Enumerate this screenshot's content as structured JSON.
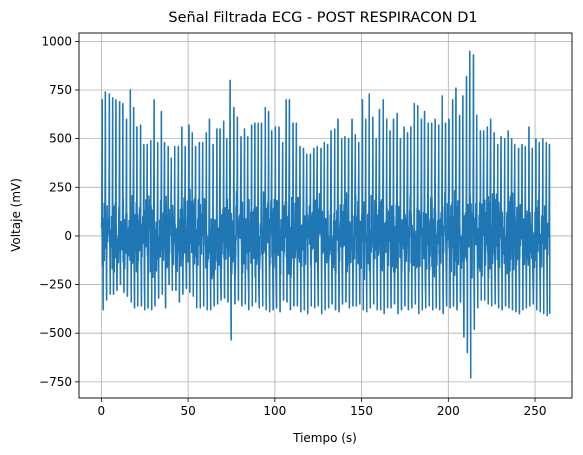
{
  "chart_data": {
    "type": "line",
    "title": "Señal Filtrada ECG - POST RESPIRACON D1",
    "xlabel": "Tiempo (s)",
    "ylabel": "Voltaje (mV)",
    "xlim": [
      -12.9,
      271.3
    ],
    "ylim": [
      -833,
      1043
    ],
    "grid": true,
    "x_ticks": [
      0,
      50,
      100,
      150,
      200,
      250
    ],
    "y_ticks": [
      -750,
      -500,
      -250,
      0,
      250,
      500,
      750,
      1000
    ],
    "x_tick_labels": [
      "0",
      "50",
      "100",
      "150",
      "200",
      "250"
    ],
    "y_tick_labels": [
      "−750",
      "−500",
      "−250",
      "0",
      "250",
      "500",
      "750",
      "1000"
    ],
    "series": [
      {
        "color": "#1f77b4",
        "x_range": [
          0,
          258.5
        ],
        "r_peaks": [
          [
            0.5,
            700
          ],
          [
            2.3,
            740
          ],
          [
            4.6,
            730
          ],
          [
            6.5,
            710
          ],
          [
            8.4,
            700
          ],
          [
            10.5,
            690
          ],
          [
            12.4,
            680
          ],
          [
            14.5,
            600
          ],
          [
            16.7,
            750
          ],
          [
            18.6,
            660
          ],
          [
            20.5,
            560
          ],
          [
            22.6,
            570
          ],
          [
            24.5,
            470
          ],
          [
            26.4,
            470
          ],
          [
            28.5,
            490
          ],
          [
            30.4,
            700
          ],
          [
            32.5,
            480
          ],
          [
            34.6,
            640
          ],
          [
            36.4,
            480
          ],
          [
            38.5,
            460
          ],
          [
            40.3,
            400
          ],
          [
            42.3,
            460
          ],
          [
            44.4,
            460
          ],
          [
            46.4,
            560
          ],
          [
            48.3,
            460
          ],
          [
            50.5,
            570
          ],
          [
            52.4,
            530
          ],
          [
            54.3,
            460
          ],
          [
            56.5,
            480
          ],
          [
            58.4,
            480
          ],
          [
            60.5,
            530
          ],
          [
            62.3,
            600
          ],
          [
            64.4,
            470
          ],
          [
            66.6,
            550
          ],
          [
            68.4,
            550
          ],
          [
            70.5,
            590
          ],
          [
            72.3,
            500
          ],
          [
            74.2,
            800
          ],
          [
            76.4,
            660
          ],
          [
            78.4,
            610
          ],
          [
            80.5,
            510
          ],
          [
            82.5,
            550
          ],
          [
            84.4,
            510
          ],
          [
            86.6,
            570
          ],
          [
            88.5,
            580
          ],
          [
            90.4,
            580
          ],
          [
            92.3,
            580
          ],
          [
            94.5,
            660
          ],
          [
            96.4,
            640
          ],
          [
            98.2,
            540
          ],
          [
            100.3,
            560
          ],
          [
            102.4,
            560
          ],
          [
            104.5,
            480
          ],
          [
            106.5,
            700
          ],
          [
            108.4,
            700
          ],
          [
            110.5,
            580
          ],
          [
            112.4,
            580
          ],
          [
            114.5,
            460
          ],
          [
            116.5,
            450
          ],
          [
            118.4,
            420
          ],
          [
            120.5,
            420
          ],
          [
            122.5,
            450
          ],
          [
            124.4,
            460
          ],
          [
            126.6,
            450
          ],
          [
            128.5,
            480
          ],
          [
            130.4,
            470
          ],
          [
            132.4,
            540
          ],
          [
            134.5,
            550
          ],
          [
            136.4,
            600
          ],
          [
            138.6,
            500
          ],
          [
            140.4,
            510
          ],
          [
            142.5,
            500
          ],
          [
            144.5,
            600
          ],
          [
            146.4,
            520
          ],
          [
            148.4,
            480
          ],
          [
            150.5,
            700
          ],
          [
            152.4,
            600
          ],
          [
            154.4,
            730
          ],
          [
            156.5,
            610
          ],
          [
            158.4,
            500
          ],
          [
            160.3,
            650
          ],
          [
            162.5,
            700
          ],
          [
            164.5,
            600
          ],
          [
            166.4,
            540
          ],
          [
            168.4,
            600
          ],
          [
            170.5,
            630
          ],
          [
            172.4,
            500
          ],
          [
            174.5,
            560
          ],
          [
            176.5,
            530
          ],
          [
            178.4,
            560
          ],
          [
            180.4,
            680
          ],
          [
            182.4,
            670
          ],
          [
            184.5,
            600
          ],
          [
            186.3,
            640
          ],
          [
            188.4,
            580
          ],
          [
            190.4,
            580
          ],
          [
            192.4,
            600
          ],
          [
            194.5,
            570
          ],
          [
            196.5,
            720
          ],
          [
            198.4,
            580
          ],
          [
            200.4,
            600
          ],
          [
            202.5,
            700
          ],
          [
            204.4,
            760
          ],
          [
            206.5,
            620
          ],
          [
            208.4,
            720
          ],
          [
            210.5,
            820
          ],
          [
            212.4,
            950
          ],
          [
            214.5,
            930
          ],
          [
            216.4,
            620
          ],
          [
            218.5,
            540
          ],
          [
            220.4,
            540
          ],
          [
            222.5,
            560
          ],
          [
            224.4,
            600
          ],
          [
            226.4,
            530
          ],
          [
            228.5,
            470
          ],
          [
            230.4,
            510
          ],
          [
            232.5,
            500
          ],
          [
            234.5,
            540
          ],
          [
            236.5,
            500
          ],
          [
            238.3,
            470
          ],
          [
            240.5,
            450
          ],
          [
            242.5,
            470
          ],
          [
            244.4,
            460
          ],
          [
            246.5,
            560
          ],
          [
            248.4,
            450
          ],
          [
            250.5,
            500
          ],
          [
            252.4,
            480
          ],
          [
            254.5,
            500
          ],
          [
            256.5,
            480
          ],
          [
            258.3,
            470
          ]
        ],
        "s_troughs": [
          [
            1.0,
            -380
          ],
          [
            3.0,
            -330
          ],
          [
            5.1,
            -300
          ],
          [
            7.0,
            -300
          ],
          [
            9.0,
            -280
          ],
          [
            11.0,
            -250
          ],
          [
            13.0,
            -290
          ],
          [
            15.0,
            -310
          ],
          [
            17.2,
            -340
          ],
          [
            19.1,
            -370
          ],
          [
            21.0,
            -360
          ],
          [
            23.1,
            -360
          ],
          [
            25.0,
            -380
          ],
          [
            26.9,
            -370
          ],
          [
            29.0,
            -380
          ],
          [
            30.9,
            -360
          ],
          [
            33.0,
            -320
          ],
          [
            35.1,
            -300
          ],
          [
            37.0,
            -370
          ],
          [
            39.0,
            -250
          ],
          [
            40.9,
            -280
          ],
          [
            43.0,
            -280
          ],
          [
            45.0,
            -340
          ],
          [
            47.0,
            -300
          ],
          [
            49.0,
            -270
          ],
          [
            51.0,
            -290
          ],
          [
            53.0,
            -310
          ],
          [
            55.0,
            -370
          ],
          [
            57.0,
            -370
          ],
          [
            59.0,
            -360
          ],
          [
            61.0,
            -380
          ],
          [
            63.0,
            -380
          ],
          [
            65.0,
            -360
          ],
          [
            67.0,
            -350
          ],
          [
            69.0,
            -330
          ],
          [
            71.0,
            -320
          ],
          [
            73.0,
            -340
          ],
          [
            74.8,
            -535
          ],
          [
            77.0,
            -350
          ],
          [
            79.0,
            -330
          ],
          [
            81.0,
            -360
          ],
          [
            83.0,
            -350
          ],
          [
            85.0,
            -380
          ],
          [
            87.0,
            -360
          ],
          [
            89.0,
            -340
          ],
          [
            91.0,
            -370
          ],
          [
            93.0,
            -360
          ],
          [
            95.0,
            -380
          ],
          [
            97.0,
            -390
          ],
          [
            99.0,
            -380
          ],
          [
            101.0,
            -370
          ],
          [
            103.0,
            -390
          ],
          [
            105.0,
            -330
          ],
          [
            107.0,
            -340
          ],
          [
            109.0,
            -380
          ],
          [
            111.0,
            -360
          ],
          [
            113.0,
            -360
          ],
          [
            115.0,
            -390
          ],
          [
            117.0,
            -380
          ],
          [
            119.0,
            -400
          ],
          [
            121.0,
            -360
          ],
          [
            123.0,
            -370
          ],
          [
            125.0,
            -360
          ],
          [
            127.0,
            -400
          ],
          [
            129.0,
            -380
          ],
          [
            131.0,
            -370
          ],
          [
            133.0,
            -350
          ],
          [
            135.0,
            -380
          ],
          [
            137.0,
            -390
          ],
          [
            139.0,
            -350
          ],
          [
            141.0,
            -340
          ],
          [
            143.0,
            -370
          ],
          [
            145.0,
            -360
          ],
          [
            147.0,
            -360
          ],
          [
            149.0,
            -350
          ],
          [
            151.0,
            -380
          ],
          [
            153.0,
            -390
          ],
          [
            155.0,
            -370
          ],
          [
            157.0,
            -350
          ],
          [
            159.0,
            -380
          ],
          [
            161.0,
            -380
          ],
          [
            163.0,
            -400
          ],
          [
            165.0,
            -370
          ],
          [
            167.0,
            -370
          ],
          [
            169.0,
            -350
          ],
          [
            171.0,
            -400
          ],
          [
            173.0,
            -380
          ],
          [
            175.0,
            -360
          ],
          [
            177.0,
            -380
          ],
          [
            179.0,
            -370
          ],
          [
            181.0,
            -350
          ],
          [
            183.0,
            -400
          ],
          [
            185.0,
            -380
          ],
          [
            187.0,
            -370
          ],
          [
            189.0,
            -360
          ],
          [
            191.0,
            -380
          ],
          [
            193.0,
            -370
          ],
          [
            195.0,
            -380
          ],
          [
            197.0,
            -400
          ],
          [
            199.0,
            -360
          ],
          [
            201.0,
            -370
          ],
          [
            203.0,
            -360
          ],
          [
            205.0,
            -380
          ],
          [
            207.0,
            -340
          ],
          [
            209.0,
            -520
          ],
          [
            211.0,
            -600
          ],
          [
            212.9,
            -730
          ],
          [
            215.0,
            -480
          ],
          [
            217.0,
            -370
          ],
          [
            219.0,
            -330
          ],
          [
            221.0,
            -330
          ],
          [
            223.0,
            -350
          ],
          [
            225.0,
            -360
          ],
          [
            227.0,
            -350
          ],
          [
            229.0,
            -370
          ],
          [
            231.0,
            -380
          ],
          [
            233.0,
            -360
          ],
          [
            235.0,
            -370
          ],
          [
            237.0,
            -380
          ],
          [
            239.0,
            -390
          ],
          [
            241.0,
            -400
          ],
          [
            243.0,
            -380
          ],
          [
            245.0,
            -370
          ],
          [
            247.0,
            -360
          ],
          [
            249.0,
            -350
          ],
          [
            251.0,
            -380
          ],
          [
            253.0,
            -390
          ],
          [
            255.0,
            -400
          ],
          [
            257.0,
            -410
          ],
          [
            258.5,
            -400
          ]
        ],
        "baseline_band": [
          -250,
          250
        ]
      }
    ]
  }
}
